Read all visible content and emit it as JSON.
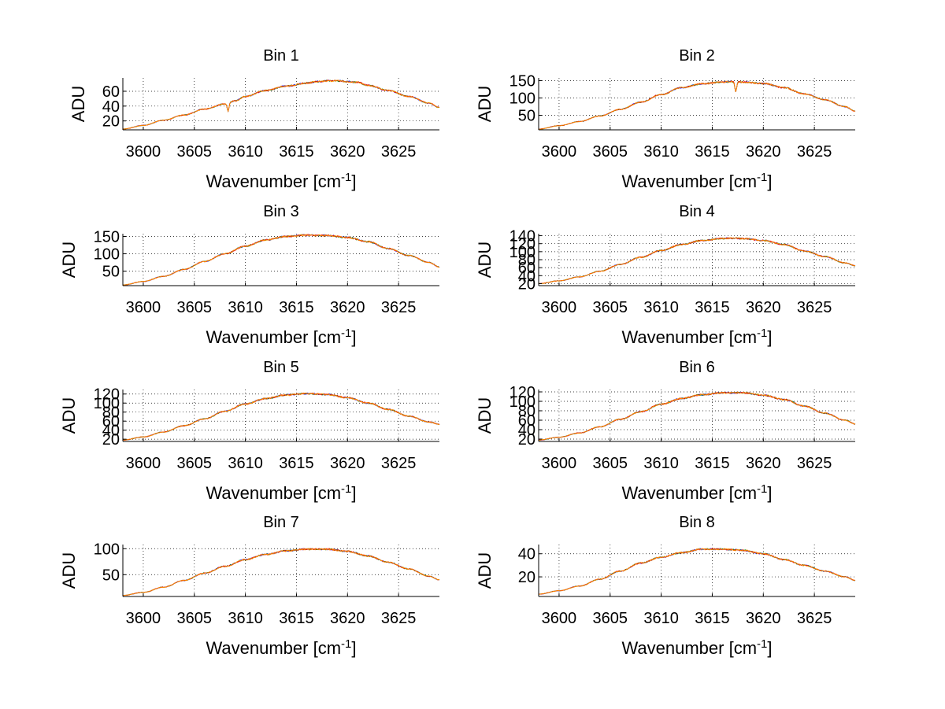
{
  "figure": {
    "background": "#ffffff",
    "spectrum_colors": [
      "#0000ff",
      "#008000",
      "#ff0000",
      "#ff8c00"
    ],
    "xlabel_prefix": "Wavenumber [cm",
    "xlabel_superscript": "-1",
    "xlabel_suffix": "]",
    "ylabel": "ADU"
  },
  "chart_data": [
    {
      "type": "line",
      "title": "Bin 1",
      "xlabel": "Wavenumber [cm-1]",
      "ylabel": "ADU",
      "xlim": [
        3598,
        3629
      ],
      "ylim": [
        8,
        78
      ],
      "xticks": [
        3600,
        3605,
        3610,
        3615,
        3620,
        3625
      ],
      "yticks": [
        20,
        40,
        60
      ],
      "grid": true,
      "x": [
        3598,
        3600,
        3602,
        3604,
        3606,
        3608,
        3609,
        3610,
        3612,
        3614,
        3616,
        3617,
        3618,
        3619,
        3620,
        3621,
        3622,
        3624,
        3626,
        3628,
        3629
      ],
      "y": [
        9,
        14,
        21,
        28,
        36,
        43,
        47,
        53,
        61,
        67,
        71,
        73,
        74,
        74,
        73,
        72,
        68,
        61,
        53,
        44,
        38
      ],
      "dips": [
        [
          3608.3,
          33
        ]
      ]
    },
    {
      "type": "line",
      "title": "Bin 2",
      "xlabel": "Wavenumber [cm-1]",
      "ylabel": "ADU",
      "xlim": [
        3598,
        3629
      ],
      "ylim": [
        8,
        158
      ],
      "xticks": [
        3600,
        3605,
        3610,
        3615,
        3620,
        3625
      ],
      "yticks": [
        50,
        100,
        150
      ],
      "grid": true,
      "x": [
        3598,
        3600,
        3602,
        3604,
        3606,
        3608,
        3610,
        3612,
        3614,
        3616,
        3617,
        3618,
        3620,
        3622,
        3624,
        3626,
        3628,
        3629
      ],
      "y": [
        10,
        20,
        32,
        48,
        67,
        88,
        110,
        130,
        141,
        146,
        147,
        146,
        142,
        130,
        112,
        95,
        75,
        62
      ],
      "dips": [
        [
          3617.3,
          118
        ]
      ]
    },
    {
      "type": "line",
      "title": "Bin 3",
      "xlabel": "Wavenumber [cm-1]",
      "ylabel": "ADU",
      "xlim": [
        3598,
        3629
      ],
      "ylim": [
        8,
        158
      ],
      "xticks": [
        3600,
        3605,
        3610,
        3615,
        3620,
        3625
      ],
      "yticks": [
        50,
        100,
        150
      ],
      "grid": true,
      "x": [
        3598,
        3600,
        3602,
        3604,
        3606,
        3608,
        3610,
        3612,
        3614,
        3616,
        3618,
        3620,
        3622,
        3624,
        3626,
        3628,
        3629
      ],
      "y": [
        10,
        20,
        35,
        55,
        78,
        100,
        122,
        140,
        150,
        154,
        153,
        147,
        135,
        115,
        95,
        75,
        62
      ],
      "dips": []
    },
    {
      "type": "line",
      "title": "Bin 4",
      "xlabel": "Wavenumber [cm-1]",
      "ylabel": "ADU",
      "xlim": [
        3598,
        3629
      ],
      "ylim": [
        15,
        145
      ],
      "xticks": [
        3600,
        3605,
        3610,
        3615,
        3620,
        3625
      ],
      "yticks": [
        20,
        40,
        60,
        80,
        100,
        120,
        140
      ],
      "ytick_labels": [
        "20",
        "40",
        "60",
        "80",
        "100",
        "120",
        "140"
      ],
      "grid": true,
      "x": [
        3598,
        3600,
        3602,
        3604,
        3606,
        3608,
        3610,
        3612,
        3614,
        3616,
        3617,
        3618,
        3620,
        3622,
        3624,
        3626,
        3628,
        3629
      ],
      "y": [
        20,
        27,
        37,
        51,
        68,
        86,
        103,
        118,
        128,
        133,
        134,
        133,
        128,
        118,
        102,
        88,
        72,
        65
      ],
      "dips": []
    },
    {
      "type": "line",
      "title": "Bin 5",
      "xlabel": "Wavenumber [cm-1]",
      "ylabel": "ADU",
      "xlim": [
        3598,
        3629
      ],
      "ylim": [
        15,
        130
      ],
      "xticks": [
        3600,
        3605,
        3610,
        3615,
        3620,
        3625
      ],
      "yticks": [
        20,
        40,
        60,
        80,
        100,
        120
      ],
      "ytick_labels": [
        "20",
        "40",
        "60",
        "80",
        "100",
        "120"
      ],
      "grid": true,
      "x": [
        3598,
        3600,
        3602,
        3604,
        3606,
        3608,
        3610,
        3612,
        3614,
        3616,
        3618,
        3620,
        3622,
        3624,
        3626,
        3628,
        3629
      ],
      "y": [
        18,
        25,
        36,
        50,
        65,
        82,
        98,
        110,
        118,
        121,
        119,
        112,
        100,
        86,
        71,
        58,
        53
      ],
      "dips": []
    },
    {
      "type": "line",
      "title": "Bin 6",
      "xlabel": "Wavenumber [cm-1]",
      "ylabel": "ADU",
      "xlim": [
        3598,
        3629
      ],
      "ylim": [
        15,
        125
      ],
      "xticks": [
        3600,
        3605,
        3610,
        3615,
        3620,
        3625
      ],
      "yticks": [
        20,
        40,
        60,
        80,
        100,
        120
      ],
      "ytick_labels": [
        "20",
        "40",
        "60",
        "80",
        "100",
        "120"
      ],
      "grid": true,
      "x": [
        3598,
        3600,
        3602,
        3604,
        3606,
        3608,
        3610,
        3612,
        3614,
        3616,
        3618,
        3620,
        3622,
        3624,
        3626,
        3628,
        3629
      ],
      "y": [
        18,
        24,
        33,
        46,
        62,
        78,
        94,
        106,
        114,
        118,
        118,
        113,
        104,
        90,
        75,
        60,
        52
      ],
      "dips": []
    },
    {
      "type": "line",
      "title": "Bin 7",
      "xlabel": "Wavenumber [cm-1]",
      "ylabel": "ADU",
      "xlim": [
        3598,
        3629
      ],
      "ylim": [
        8,
        108
      ],
      "xticks": [
        3600,
        3605,
        3610,
        3615,
        3620,
        3625
      ],
      "yticks": [
        50,
        100
      ],
      "grid": true,
      "x": [
        3598,
        3600,
        3602,
        3604,
        3606,
        3608,
        3610,
        3612,
        3614,
        3616,
        3618,
        3620,
        3622,
        3624,
        3626,
        3628,
        3629
      ],
      "y": [
        10,
        16,
        26,
        39,
        53,
        66,
        79,
        89,
        96,
        99,
        99,
        95,
        86,
        74,
        61,
        47,
        40
      ],
      "dips": []
    },
    {
      "type": "line",
      "title": "Bin 8",
      "xlabel": "Wavenumber [cm-1]",
      "ylabel": "ADU",
      "xlim": [
        3598,
        3629
      ],
      "ylim": [
        3,
        48
      ],
      "xticks": [
        3600,
        3605,
        3610,
        3615,
        3620,
        3625
      ],
      "yticks": [
        20,
        40
      ],
      "grid": true,
      "x": [
        3598,
        3600,
        3602,
        3604,
        3606,
        3608,
        3610,
        3612,
        3614,
        3616,
        3618,
        3620,
        3622,
        3624,
        3626,
        3628,
        3629
      ],
      "y": [
        5,
        8,
        12,
        18,
        25,
        32,
        37,
        41,
        44,
        44,
        43,
        40,
        35,
        30,
        25,
        20,
        17
      ],
      "dips": []
    }
  ]
}
